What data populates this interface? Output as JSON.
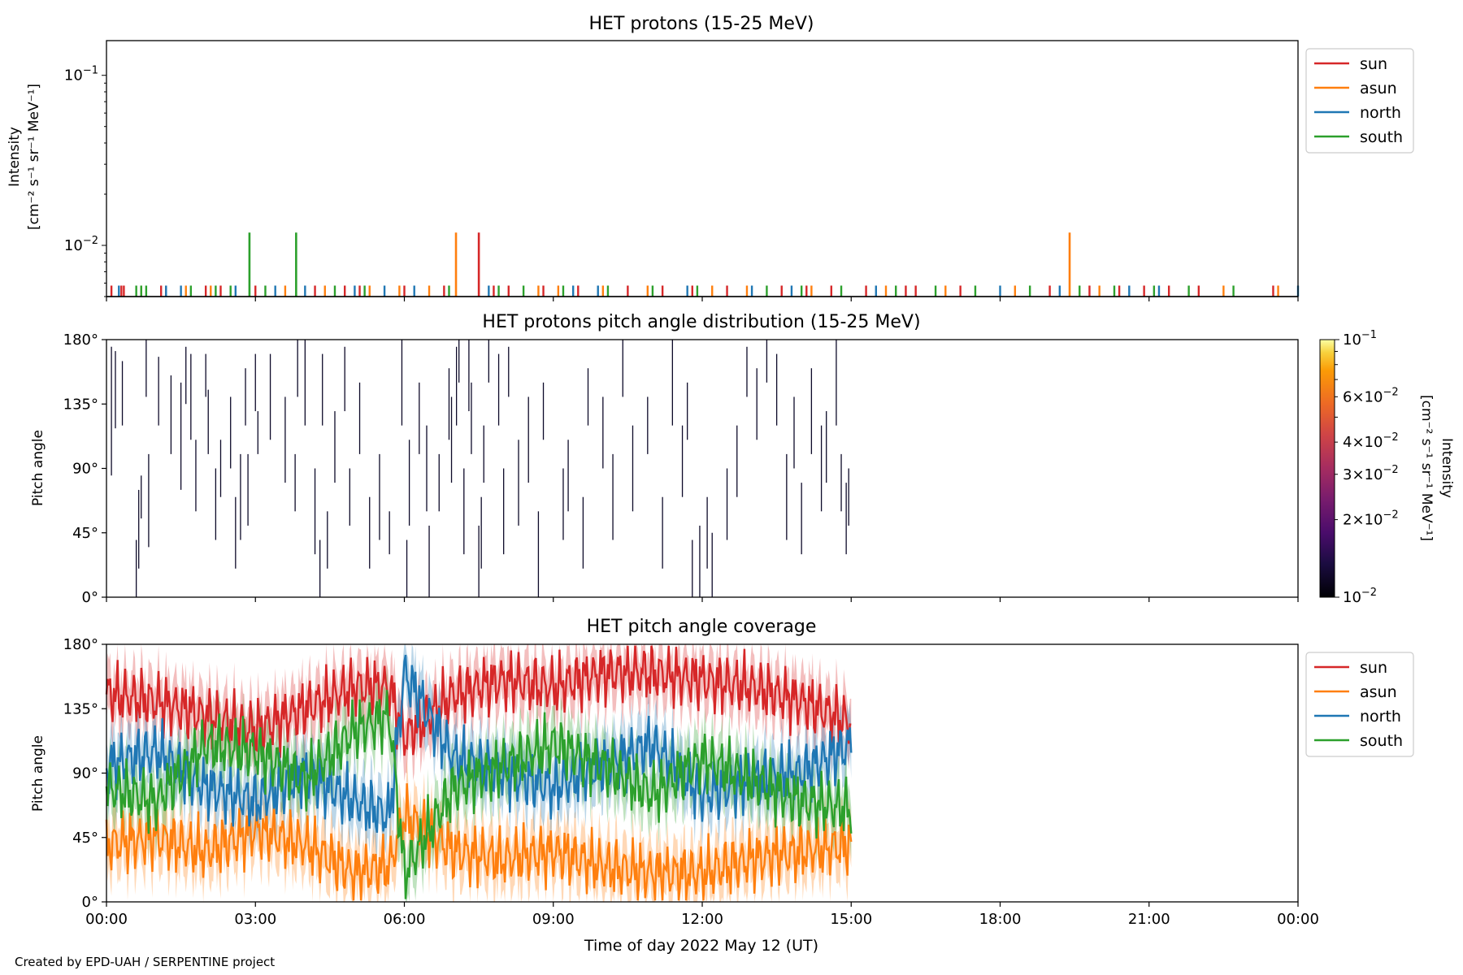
{
  "figure": {
    "credit": "Created by EPD-UAH / SERPENTINE project",
    "xlabel": "Time of day 2022 May 12 (UT)",
    "x_ticks": [
      "00:00",
      "03:00",
      "06:00",
      "09:00",
      "12:00",
      "15:00",
      "18:00",
      "21:00",
      "00:00"
    ],
    "x_range_hours": [
      0,
      24
    ]
  },
  "colors": {
    "sun": "#d62728",
    "asun": "#ff7f0e",
    "north": "#1f77b4",
    "south": "#2ca02c"
  },
  "chart_data": [
    {
      "type": "bar",
      "title": "HET protons (15-25 MeV)",
      "ylabel_lines": [
        "Intensity",
        "[cm⁻² s⁻¹ sr⁻¹ MeV⁻¹]"
      ],
      "yscale": "log",
      "ylim": [
        0.005,
        0.16
      ],
      "y_ticks": [
        {
          "value": 0.1,
          "base": "10",
          "exp": "−1"
        },
        {
          "value": 0.01,
          "base": "10",
          "exp": "−2"
        }
      ],
      "baseline": 0.005,
      "legend": {
        "placement": "right-top",
        "entries": [
          "sun",
          "asun",
          "north",
          "south"
        ]
      },
      "spikes": [
        {
          "series": "south",
          "time": 2.88,
          "value": 0.0119
        },
        {
          "series": "south",
          "time": 3.82,
          "value": 0.0119
        },
        {
          "series": "asun",
          "time": 7.04,
          "value": 0.0119
        },
        {
          "series": "sun",
          "time": 7.5,
          "value": 0.0119
        },
        {
          "series": "asun",
          "time": 19.4,
          "value": 0.0119
        }
      ],
      "small_events": [
        {
          "series": "sun",
          "times": [
            0.1,
            0.3,
            0.35,
            1.1,
            1.2,
            2.0,
            2.3,
            3.0,
            4.2,
            4.8,
            5.1,
            6.0,
            6.8,
            7.8,
            8.1,
            8.8,
            9.5,
            10.5,
            11.2,
            11.8,
            12.5,
            13.6,
            14.1,
            14.6,
            15.3,
            16.1,
            16.3,
            17.2,
            19.0,
            19.8,
            20.4,
            20.9,
            21.4,
            22.0,
            23.5
          ]
        },
        {
          "series": "asun",
          "times": [
            0.7,
            1.6,
            2.1,
            3.6,
            4.4,
            5.3,
            5.9,
            6.5,
            8.7,
            9.1,
            10.0,
            10.9,
            12.2,
            12.9,
            14.2,
            15.7,
            16.9,
            18.3,
            20.0,
            22.5,
            23.6
          ]
        },
        {
          "series": "north",
          "times": [
            0.25,
            1.2,
            1.5,
            2.6,
            3.4,
            4.0,
            5.0,
            5.6,
            6.2,
            7.7,
            9.4,
            9.9,
            11.7,
            13.0,
            13.8,
            15.5,
            18.0,
            19.2,
            20.6,
            21.2,
            24.0
          ]
        },
        {
          "series": "south",
          "times": [
            0.6,
            0.7,
            0.8,
            1.7,
            2.2,
            2.5,
            3.2,
            4.6,
            5.2,
            6.9,
            7.9,
            8.4,
            9.2,
            10.1,
            11.0,
            11.9,
            13.3,
            14.0,
            14.8,
            15.9,
            16.7,
            17.5,
            18.6,
            19.6,
            20.3,
            21.1,
            21.8,
            22.7
          ]
        }
      ],
      "small_event_value": 0.0058
    },
    {
      "type": "heatmap",
      "title": "HET protons pitch angle distribution (15-25 MeV)",
      "ylabel": "Pitch angle",
      "ylim": [
        0,
        180
      ],
      "y_ticks": [
        "0°",
        "45°",
        "90°",
        "135°",
        "180°"
      ],
      "y_tick_values": [
        0,
        45,
        90,
        135,
        180
      ],
      "colorbar": {
        "label_lines": [
          "Intensity",
          "[cm⁻² s⁻¹ sr⁻¹ MeV⁻¹]"
        ],
        "scale": "log",
        "range": [
          0.01,
          0.1
        ],
        "ticks": [
          {
            "value": 0.1,
            "base": "10",
            "exp": "−1"
          },
          {
            "value": 0.06,
            "mant": "6",
            "base": "10",
            "exp": "−2"
          },
          {
            "value": 0.04,
            "mant": "4",
            "base": "10",
            "exp": "−2"
          },
          {
            "value": 0.03,
            "mant": "3",
            "base": "10",
            "exp": "−2"
          },
          {
            "value": 0.02,
            "mant": "2",
            "base": "10",
            "exp": "−2"
          },
          {
            "value": 0.01,
            "base": "10",
            "exp": "−2"
          }
        ]
      },
      "pixel_value": 0.0119,
      "segments": [
        [
          0.1,
          85,
          175
        ],
        [
          0.18,
          118,
          172
        ],
        [
          0.32,
          120,
          165
        ],
        [
          0.6,
          0,
          40
        ],
        [
          0.65,
          20,
          75
        ],
        [
          0.7,
          55,
          85
        ],
        [
          0.8,
          140,
          180
        ],
        [
          0.85,
          35,
          100
        ],
        [
          1.05,
          120,
          168
        ],
        [
          1.3,
          100,
          155
        ],
        [
          1.5,
          75,
          150
        ],
        [
          1.6,
          135,
          175
        ],
        [
          1.7,
          110,
          170
        ],
        [
          1.8,
          60,
          110
        ],
        [
          2.0,
          140,
          170
        ],
        [
          2.05,
          100,
          145
        ],
        [
          2.2,
          40,
          90
        ],
        [
          2.3,
          70,
          110
        ],
        [
          2.5,
          90,
          140
        ],
        [
          2.6,
          20,
          70
        ],
        [
          2.7,
          40,
          100
        ],
        [
          2.8,
          120,
          160
        ],
        [
          2.85,
          50,
          100
        ],
        [
          3.0,
          130,
          170
        ],
        [
          3.05,
          100,
          130
        ],
        [
          3.3,
          110,
          170
        ],
        [
          3.6,
          80,
          140
        ],
        [
          3.8,
          60,
          100
        ],
        [
          3.85,
          140,
          180
        ],
        [
          4.0,
          120,
          180
        ],
        [
          4.2,
          30,
          90
        ],
        [
          4.3,
          0,
          40
        ],
        [
          4.35,
          120,
          170
        ],
        [
          4.45,
          20,
          60
        ],
        [
          4.6,
          80,
          130
        ],
        [
          4.8,
          130,
          175
        ],
        [
          4.9,
          50,
          90
        ],
        [
          5.1,
          100,
          150
        ],
        [
          5.3,
          20,
          70
        ],
        [
          5.5,
          40,
          100
        ],
        [
          5.7,
          30,
          60
        ],
        [
          5.95,
          120,
          180
        ],
        [
          6.05,
          0,
          40
        ],
        [
          6.1,
          50,
          110
        ],
        [
          6.3,
          100,
          150
        ],
        [
          6.45,
          60,
          120
        ],
        [
          6.5,
          0,
          50
        ],
        [
          6.7,
          60,
          100
        ],
        [
          6.9,
          110,
          160
        ],
        [
          6.95,
          80,
          140
        ],
        [
          7.05,
          120,
          175
        ],
        [
          7.1,
          150,
          180
        ],
        [
          7.2,
          30,
          90
        ],
        [
          7.3,
          130,
          180
        ],
        [
          7.35,
          100,
          150
        ],
        [
          7.5,
          0,
          50
        ],
        [
          7.55,
          20,
          70
        ],
        [
          7.6,
          80,
          120
        ],
        [
          7.7,
          150,
          180
        ],
        [
          7.9,
          120,
          170
        ],
        [
          8.0,
          30,
          90
        ],
        [
          8.1,
          140,
          175
        ],
        [
          8.3,
          50,
          110
        ],
        [
          8.5,
          80,
          140
        ],
        [
          8.7,
          0,
          60
        ],
        [
          8.8,
          110,
          150
        ],
        [
          9.2,
          40,
          90
        ],
        [
          9.3,
          60,
          110
        ],
        [
          9.6,
          20,
          70
        ],
        [
          9.7,
          120,
          160
        ],
        [
          10.0,
          90,
          140
        ],
        [
          10.2,
          40,
          100
        ],
        [
          10.4,
          140,
          180
        ],
        [
          10.6,
          60,
          120
        ],
        [
          10.9,
          100,
          140
        ],
        [
          11.2,
          20,
          70
        ],
        [
          11.4,
          120,
          180
        ],
        [
          11.6,
          70,
          120
        ],
        [
          11.7,
          110,
          150
        ],
        [
          11.8,
          0,
          40
        ],
        [
          11.95,
          0,
          50
        ],
        [
          12.1,
          20,
          70
        ],
        [
          12.2,
          0,
          45
        ],
        [
          12.5,
          40,
          90
        ],
        [
          12.7,
          70,
          120
        ],
        [
          12.9,
          140,
          175
        ],
        [
          13.1,
          110,
          160
        ],
        [
          13.3,
          150,
          180
        ],
        [
          13.5,
          120,
          170
        ],
        [
          13.7,
          40,
          100
        ],
        [
          13.85,
          90,
          140
        ],
        [
          14.0,
          30,
          80
        ],
        [
          14.2,
          100,
          160
        ],
        [
          14.4,
          60,
          120
        ],
        [
          14.5,
          80,
          130
        ],
        [
          14.7,
          120,
          180
        ],
        [
          14.8,
          60,
          100
        ],
        [
          14.9,
          30,
          80
        ],
        [
          14.95,
          50,
          90
        ]
      ]
    },
    {
      "type": "line",
      "title": "HET pitch angle coverage",
      "ylabel": "Pitch angle",
      "ylim": [
        0,
        180
      ],
      "y_ticks": [
        "0°",
        "45°",
        "90°",
        "135°",
        "180°"
      ],
      "y_tick_values": [
        0,
        45,
        90,
        135,
        180
      ],
      "x_end_hours": 15,
      "band_halfwidth": 18,
      "legend": {
        "placement": "right-top",
        "entries": [
          "sun",
          "asun",
          "north",
          "south"
        ]
      },
      "series": [
        {
          "key": "sun",
          "x": [
            0,
            1,
            2,
            3,
            4,
            5,
            5.7,
            6,
            7,
            8,
            9,
            10,
            11,
            12,
            13,
            14,
            15
          ],
          "values": [
            145,
            140,
            130,
            120,
            135,
            150,
            150,
            115,
            145,
            155,
            150,
            160,
            160,
            155,
            150,
            140,
            125
          ]
        },
        {
          "key": "asun",
          "x": [
            0,
            1,
            2,
            3,
            4,
            5,
            5.7,
            6,
            7,
            8,
            9,
            10,
            11,
            12,
            13,
            14,
            15
          ],
          "values": [
            40,
            45,
            35,
            50,
            40,
            20,
            25,
            60,
            35,
            30,
            35,
            25,
            20,
            20,
            30,
            35,
            40
          ]
        },
        {
          "key": "north",
          "x": [
            0,
            1,
            2,
            3,
            4,
            5,
            5.7,
            6,
            7,
            8,
            9,
            10,
            11,
            12,
            13,
            14,
            15
          ],
          "values": [
            95,
            105,
            80,
            70,
            90,
            70,
            60,
            160,
            100,
            90,
            80,
            95,
            110,
            75,
            85,
            90,
            110
          ]
        },
        {
          "key": "south",
          "x": [
            0,
            1,
            2,
            3,
            4,
            5,
            5.7,
            6,
            7,
            8,
            9,
            10,
            11,
            12,
            13,
            14,
            15
          ],
          "values": [
            80,
            70,
            110,
            105,
            85,
            120,
            130,
            20,
            80,
            95,
            110,
            95,
            75,
            100,
            85,
            70,
            65
          ]
        }
      ]
    }
  ]
}
